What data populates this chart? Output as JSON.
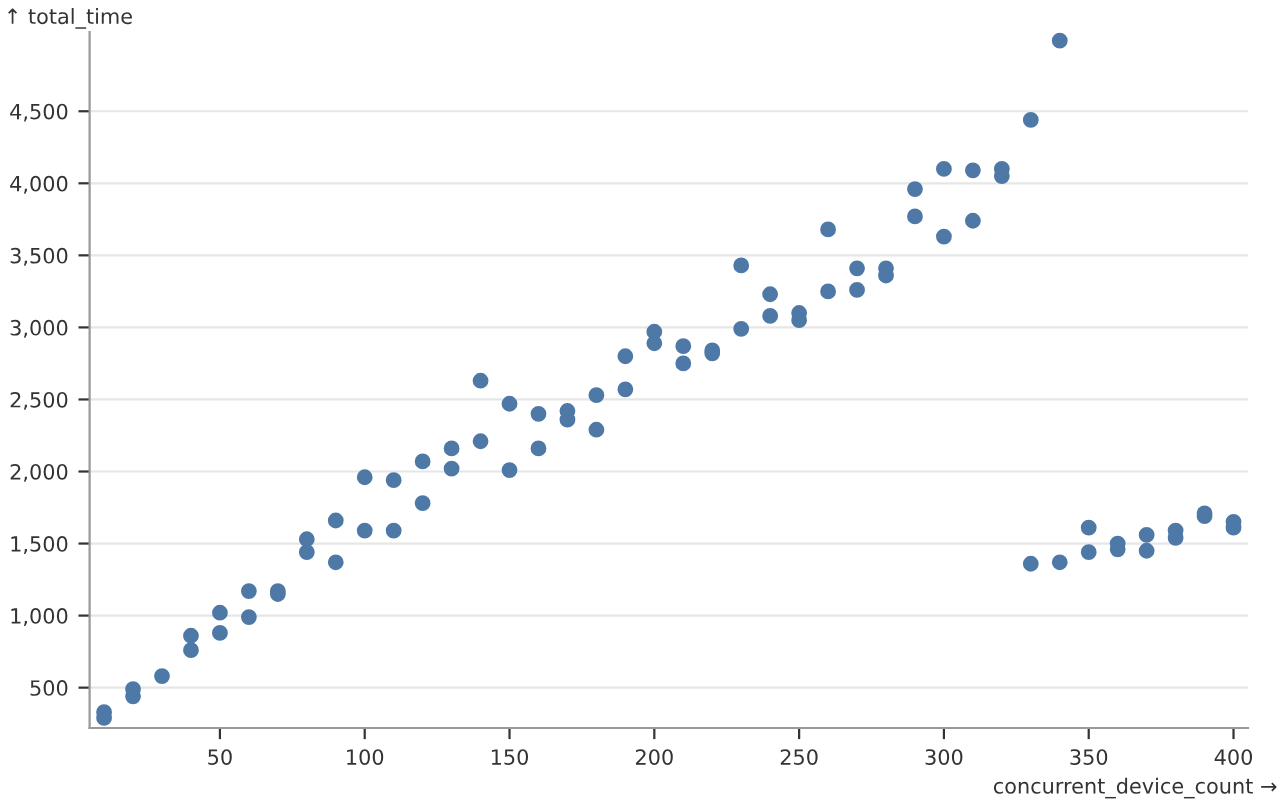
{
  "chart_data": {
    "type": "scatter",
    "xlabel": "concurrent_device_count →",
    "ylabel": "↑ total_time",
    "x": [
      10,
      10,
      20,
      20,
      30,
      40,
      40,
      50,
      50,
      60,
      60,
      70,
      70,
      80,
      80,
      90,
      90,
      100,
      100,
      110,
      110,
      120,
      120,
      130,
      130,
      140,
      140,
      150,
      150,
      160,
      160,
      170,
      170,
      180,
      180,
      190,
      190,
      200,
      200,
      210,
      210,
      220,
      220,
      230,
      230,
      240,
      240,
      250,
      250,
      260,
      260,
      270,
      270,
      280,
      280,
      290,
      290,
      300,
      300,
      310,
      310,
      320,
      320,
      330,
      330,
      340,
      340,
      350,
      350,
      360,
      360,
      370,
      370,
      380,
      380,
      390,
      390,
      400,
      400
    ],
    "series": [
      {
        "color": "#4e79a7",
        "values": [
          290,
          330,
          490,
          440,
          580,
          860,
          760,
          1020,
          880,
          1170,
          990,
          1170,
          1150,
          1530,
          1440,
          1660,
          1370,
          1960,
          1590,
          1940,
          1590,
          2070,
          1780,
          2160,
          2020,
          2630,
          2210,
          2470,
          2010,
          2400,
          2160,
          2420,
          2360,
          2530,
          2290,
          2800,
          2570,
          2970,
          2890,
          2870,
          2750,
          2840,
          2820,
          3430,
          2990,
          3230,
          3080,
          3100,
          3050,
          3680,
          3250,
          3410,
          3260,
          3410,
          3360,
          3960,
          3770,
          4100,
          3630,
          4090,
          3740,
          4100,
          4050,
          4440,
          1360,
          4990,
          1370,
          1610,
          1440,
          1500,
          1460,
          1560,
          1450,
          1590,
          1540,
          1710,
          1690,
          1650,
          1610
        ]
      }
    ],
    "xlim": [
      5,
      405
    ],
    "ylim": [
      220,
      5050
    ],
    "xticks": [
      50,
      100,
      150,
      200,
      250,
      300,
      350,
      400
    ],
    "yticks": [
      {
        "value": 500,
        "label": "500"
      },
      {
        "value": 1000,
        "label": "1,000"
      },
      {
        "value": 1500,
        "label": "1,500"
      },
      {
        "value": 2000,
        "label": "2,000"
      },
      {
        "value": 2500,
        "label": "2,500"
      },
      {
        "value": 3000,
        "label": "3,000"
      },
      {
        "value": 3500,
        "label": "3,500"
      },
      {
        "value": 4000,
        "label": "4,000"
      },
      {
        "value": 4500,
        "label": "4,500"
      }
    ],
    "grid": "y",
    "marker": "circle"
  }
}
